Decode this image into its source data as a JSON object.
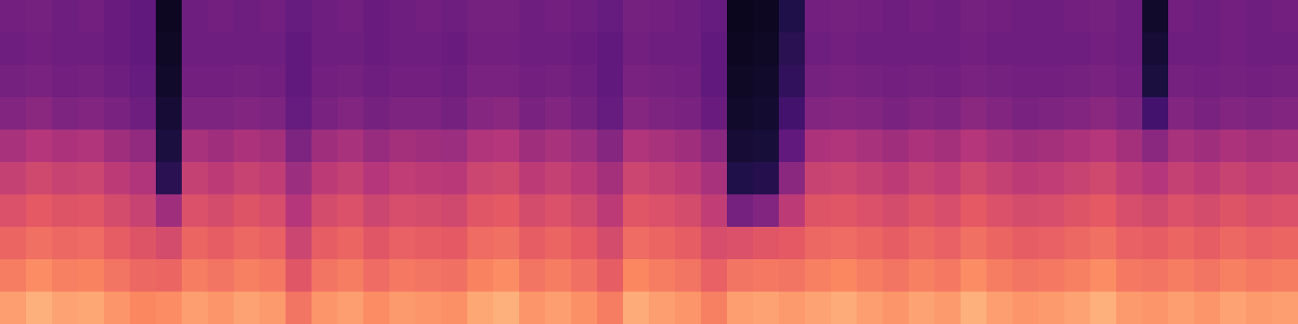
{
  "chart_data": {
    "type": "heatmap",
    "color": "magma",
    "tick_labels": false,
    "zlim": [
      0,
      100
    ],
    "cells": [
      [
        34,
        35,
        33,
        34,
        32,
        30,
        6,
        33,
        34,
        33,
        34,
        31,
        33,
        34,
        32,
        33,
        34,
        33,
        35,
        35,
        33,
        34,
        33,
        31,
        35,
        34,
        33,
        31,
        5,
        6,
        14,
        34,
        35,
        34,
        33,
        34,
        33,
        35,
        34,
        33,
        33,
        34,
        35,
        33,
        8,
        34,
        33,
        34,
        33,
        34
      ],
      [
        33,
        34,
        33,
        33,
        32,
        30,
        7,
        33,
        33,
        33,
        33,
        30,
        33,
        33,
        32,
        33,
        33,
        32,
        34,
        34,
        33,
        33,
        32,
        30,
        34,
        33,
        33,
        30,
        6,
        7,
        16,
        33,
        34,
        33,
        33,
        33,
        33,
        34,
        33,
        33,
        33,
        33,
        34,
        33,
        10,
        33,
        33,
        34,
        33,
        33
      ],
      [
        35,
        36,
        34,
        35,
        33,
        31,
        8,
        34,
        34,
        35,
        34,
        30,
        34,
        35,
        33,
        34,
        34,
        33,
        36,
        36,
        34,
        35,
        33,
        30,
        36,
        35,
        34,
        30,
        7,
        8,
        18,
        35,
        36,
        35,
        34,
        35,
        34,
        36,
        35,
        34,
        34,
        35,
        36,
        34,
        12,
        35,
        34,
        35,
        34,
        35
      ],
      [
        38,
        40,
        37,
        38,
        36,
        33,
        10,
        37,
        37,
        38,
        37,
        31,
        36,
        38,
        35,
        37,
        37,
        35,
        39,
        40,
        36,
        38,
        35,
        31,
        39,
        37,
        36,
        32,
        8,
        9,
        22,
        38,
        39,
        38,
        36,
        38,
        37,
        40,
        38,
        36,
        37,
        38,
        40,
        37,
        22,
        38,
        36,
        38,
        37,
        38
      ],
      [
        47,
        50,
        48,
        49,
        45,
        42,
        12,
        47,
        45,
        48,
        46,
        37,
        45,
        47,
        43,
        46,
        45,
        44,
        49,
        50,
        45,
        47,
        44,
        39,
        49,
        47,
        45,
        40,
        10,
        11,
        30,
        48,
        49,
        47,
        45,
        48,
        46,
        50,
        47,
        45,
        46,
        48,
        50,
        46,
        40,
        47,
        45,
        48,
        46,
        47
      ],
      [
        54,
        57,
        55,
        56,
        52,
        49,
        16,
        54,
        52,
        55,
        53,
        44,
        52,
        54,
        50,
        53,
        52,
        51,
        56,
        57,
        52,
        54,
        51,
        46,
        56,
        54,
        52,
        47,
        14,
        15,
        40,
        55,
        56,
        54,
        52,
        55,
        53,
        57,
        54,
        52,
        53,
        55,
        57,
        53,
        50,
        54,
        52,
        55,
        53,
        54
      ],
      [
        60,
        63,
        61,
        62,
        58,
        55,
        45,
        60,
        58,
        61,
        59,
        50,
        58,
        60,
        56,
        59,
        58,
        57,
        62,
        63,
        58,
        60,
        57,
        52,
        62,
        60,
        58,
        53,
        35,
        38,
        52,
        61,
        62,
        60,
        58,
        61,
        59,
        63,
        60,
        58,
        59,
        61,
        63,
        59,
        57,
        60,
        58,
        61,
        59,
        60
      ],
      [
        66,
        69,
        67,
        68,
        64,
        61,
        58,
        66,
        64,
        67,
        65,
        56,
        64,
        66,
        62,
        65,
        64,
        63,
        68,
        69,
        64,
        66,
        63,
        58,
        68,
        66,
        64,
        59,
        60,
        62,
        63,
        67,
        68,
        66,
        64,
        67,
        65,
        69,
        66,
        64,
        65,
        67,
        69,
        65,
        64,
        66,
        64,
        67,
        65,
        66
      ],
      [
        72,
        76,
        73,
        74,
        70,
        67,
        66,
        72,
        70,
        73,
        71,
        62,
        70,
        72,
        68,
        71,
        70,
        69,
        74,
        76,
        70,
        72,
        69,
        64,
        75,
        72,
        70,
        65,
        70,
        71,
        70,
        73,
        75,
        72,
        70,
        73,
        71,
        76,
        72,
        70,
        71,
        73,
        76,
        71,
        70,
        72,
        70,
        73,
        71,
        72
      ],
      [
        80,
        84,
        81,
        82,
        78,
        75,
        76,
        80,
        78,
        81,
        79,
        70,
        78,
        80,
        76,
        79,
        78,
        77,
        82,
        84,
        78,
        80,
        77,
        72,
        83,
        80,
        78,
        73,
        80,
        81,
        79,
        81,
        83,
        80,
        78,
        81,
        79,
        84,
        80,
        78,
        79,
        81,
        84,
        79,
        78,
        80,
        78,
        81,
        79,
        80
      ]
    ]
  }
}
